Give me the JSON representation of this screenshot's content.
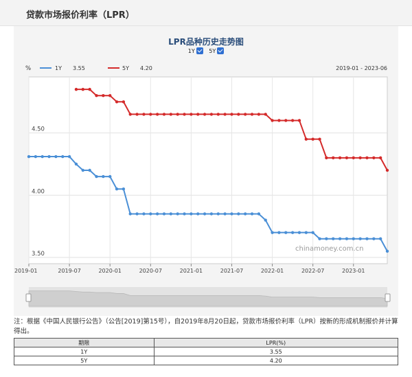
{
  "page": {
    "title": "贷款市场报价利率（LPR）"
  },
  "chart": {
    "title": "LPR品种历史走势图",
    "toggles": [
      {
        "label": "1Y",
        "checked": true
      },
      {
        "label": "5Y",
        "checked": true
      }
    ],
    "unit_label": "%",
    "range_label": "2019-01 - 2023-06",
    "watermark": "chinamoney.com.cn"
  },
  "chart_data": {
    "type": "line",
    "title": "LPR品种历史走势图",
    "xlabel": "",
    "ylabel": "%",
    "x_ticks": [
      "2019-01",
      "2019-07",
      "2020-01",
      "2020-07",
      "2021-01",
      "2021-07",
      "2022-01",
      "2022-07",
      "2023-01"
    ],
    "y_ticks": [
      "3.50",
      "4.00",
      "4.50"
    ],
    "ylim": [
      3.5,
      5.0
    ],
    "grid": true,
    "legend_position": "top-left",
    "x": [
      "2019-01",
      "2019-02",
      "2019-03",
      "2019-04",
      "2019-05",
      "2019-06",
      "2019-07",
      "2019-08",
      "2019-09",
      "2019-10",
      "2019-11",
      "2019-12",
      "2020-01",
      "2020-02",
      "2020-03",
      "2020-04",
      "2020-05",
      "2020-06",
      "2020-07",
      "2020-08",
      "2020-09",
      "2020-10",
      "2020-11",
      "2020-12",
      "2021-01",
      "2021-02",
      "2021-03",
      "2021-04",
      "2021-05",
      "2021-06",
      "2021-07",
      "2021-08",
      "2021-09",
      "2021-10",
      "2021-11",
      "2021-12",
      "2022-01",
      "2022-02",
      "2022-03",
      "2022-04",
      "2022-05",
      "2022-06",
      "2022-07",
      "2022-08",
      "2022-09",
      "2022-10",
      "2022-11",
      "2022-12",
      "2023-01",
      "2023-02",
      "2023-03",
      "2023-04",
      "2023-05",
      "2023-06"
    ],
    "series": [
      {
        "name": "1Y",
        "latest_value": "3.55",
        "color": "#4a8fd6",
        "values": [
          4.31,
          4.31,
          4.31,
          4.31,
          4.31,
          4.31,
          4.31,
          4.25,
          4.2,
          4.2,
          4.15,
          4.15,
          4.15,
          4.05,
          4.05,
          3.85,
          3.85,
          3.85,
          3.85,
          3.85,
          3.85,
          3.85,
          3.85,
          3.85,
          3.85,
          3.85,
          3.85,
          3.85,
          3.85,
          3.85,
          3.85,
          3.85,
          3.85,
          3.85,
          3.85,
          3.8,
          3.7,
          3.7,
          3.7,
          3.7,
          3.7,
          3.7,
          3.7,
          3.65,
          3.65,
          3.65,
          3.65,
          3.65,
          3.65,
          3.65,
          3.65,
          3.65,
          3.65,
          3.55
        ]
      },
      {
        "name": "5Y",
        "latest_value": "4.20",
        "color": "#d42a2a",
        "values": [
          null,
          null,
          null,
          null,
          null,
          null,
          null,
          4.85,
          4.85,
          4.85,
          4.8,
          4.8,
          4.8,
          4.75,
          4.75,
          4.65,
          4.65,
          4.65,
          4.65,
          4.65,
          4.65,
          4.65,
          4.65,
          4.65,
          4.65,
          4.65,
          4.65,
          4.65,
          4.65,
          4.65,
          4.65,
          4.65,
          4.65,
          4.65,
          4.65,
          4.65,
          4.6,
          4.6,
          4.6,
          4.6,
          4.6,
          4.45,
          4.45,
          4.45,
          4.3,
          4.3,
          4.3,
          4.3,
          4.3,
          4.3,
          4.3,
          4.3,
          4.3,
          4.2
        ]
      }
    ]
  },
  "note": "注：根据《中国人民银行公告》（公告[2019]第15号），自2019年8月20日起，贷款市场报价利率（LPR）按新的形成机制报价并计算得出。",
  "table": {
    "headers": [
      "期限",
      "LPR(%)"
    ],
    "rows": [
      [
        "1Y",
        "3.55"
      ],
      [
        "5Y",
        "4.20"
      ]
    ]
  }
}
